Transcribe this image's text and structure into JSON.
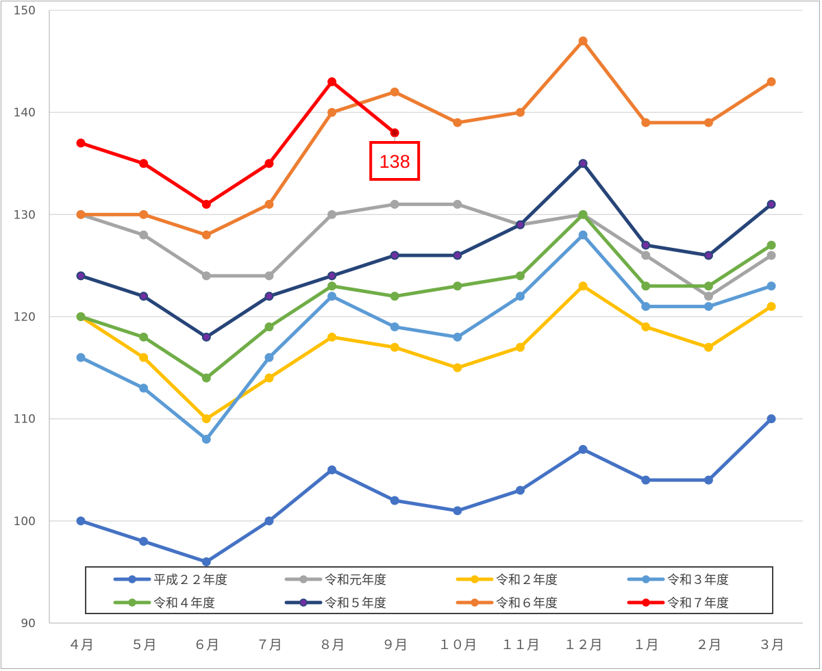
{
  "chart_data": {
    "type": "line",
    "categories": [
      "４月",
      "５月",
      "６月",
      "７月",
      "８月",
      "９月",
      "１０月",
      "１１月",
      "１２月",
      "１月",
      "２月",
      "３月"
    ],
    "ylim": [
      90,
      150
    ],
    "yticks": [
      90,
      100,
      110,
      120,
      130,
      140,
      150
    ],
    "grid": true,
    "legend_position": "bottom-inside",
    "series": [
      {
        "name": "平成２２年度",
        "color": "#4472c4",
        "values": [
          100,
          98,
          96,
          100,
          105,
          102,
          101,
          103,
          107,
          104,
          104,
          110
        ]
      },
      {
        "name": "令和元年度",
        "color": "#a5a5a5",
        "values": [
          130,
          128,
          124,
          124,
          130,
          131,
          131,
          129,
          130,
          126,
          122,
          126
        ]
      },
      {
        "name": "令和２年度",
        "color": "#ffc000",
        "values": [
          120,
          116,
          110,
          114,
          118,
          117,
          115,
          117,
          123,
          119,
          117,
          121
        ]
      },
      {
        "name": "令和３年度",
        "color": "#5b9bd5",
        "values": [
          116,
          113,
          108,
          116,
          122,
          119,
          118,
          122,
          128,
          121,
          121,
          123
        ]
      },
      {
        "name": "令和４年度",
        "color": "#70ad47",
        "values": [
          120,
          118,
          114,
          119,
          123,
          122,
          123,
          124,
          130,
          123,
          123,
          127
        ]
      },
      {
        "name": "令和５年度",
        "color": "#264478",
        "marker": "#7030a0",
        "values": [
          124,
          122,
          118,
          122,
          124,
          126,
          126,
          129,
          135,
          127,
          126,
          131
        ]
      },
      {
        "name": "令和６年度",
        "color": "#ed7d31",
        "values": [
          130,
          130,
          128,
          131,
          140,
          142,
          139,
          140,
          147,
          139,
          139,
          143
        ]
      },
      {
        "name": "令和７年度",
        "color": "#ff0000",
        "marker_last": "#c00000",
        "values": [
          137,
          135,
          131,
          135,
          143,
          138,
          null,
          null,
          null,
          null,
          null,
          null
        ]
      }
    ],
    "annotations": [
      {
        "series": "令和７年度",
        "category": "９月",
        "text": "138",
        "color": "#ff0000"
      }
    ]
  }
}
